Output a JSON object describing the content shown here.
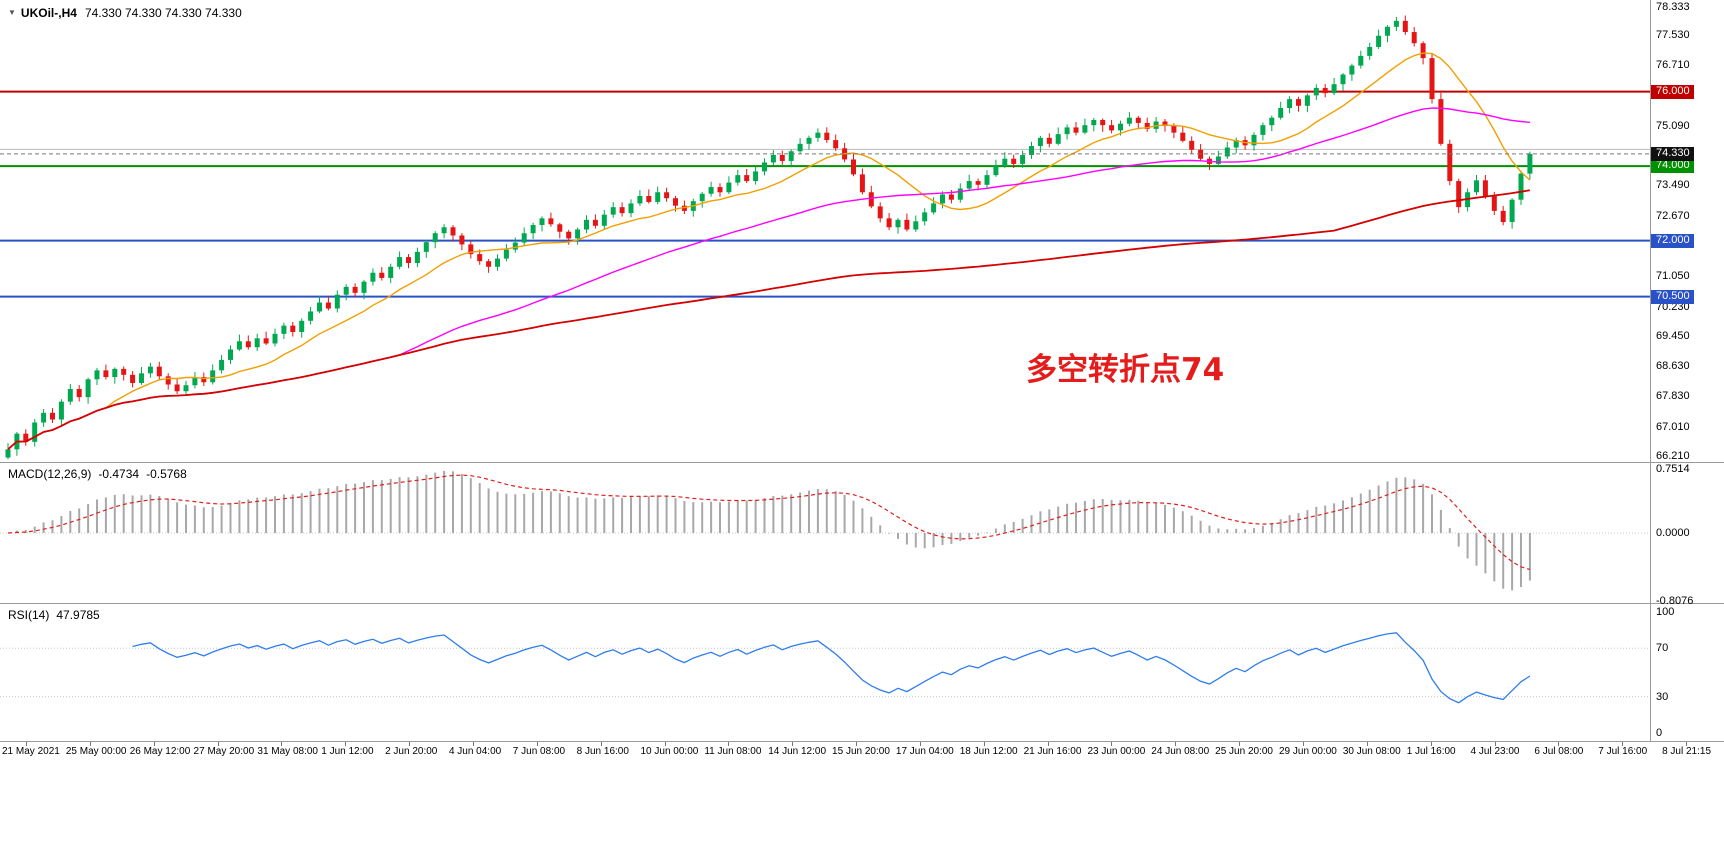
{
  "header": {
    "symbol": "UKOil-,H4",
    "ohlc": "74.330 74.330 74.330 74.330"
  },
  "annotation": {
    "text": "多空转折点74",
    "color": "#e51c1c"
  },
  "chart_data": [
    {
      "name": "price-pane",
      "type": "candlestick",
      "symbol": "UKOil-",
      "timeframe": "H4",
      "title_ohlc": "74.330 74.330 74.330 74.330",
      "ylim": [
        66.06,
        78.46
      ],
      "y_ticks": [
        "78.333",
        "77.530",
        "76.710",
        "75.090",
        "73.490",
        "72.670",
        "71.050",
        "70.230",
        "69.450",
        "68.630",
        "67.830",
        "67.010",
        "66.210"
      ],
      "levels": [
        {
          "value": 76.0,
          "label": "76.000",
          "color": "#c00000"
        },
        {
          "value": 74.0,
          "label": "74.000",
          "color": "#009100"
        },
        {
          "value": 72.0,
          "label": "72.000",
          "color": "#2a52c8"
        },
        {
          "value": 70.5,
          "label": "70.500",
          "color": "#2a52c8"
        }
      ],
      "gray_level": {
        "value": 74.45,
        "color": "#bdbdbd"
      },
      "current_price": {
        "value": 74.33,
        "label": "74.330",
        "tag_bg": "#111111",
        "line_color": "#777777"
      },
      "colors": {
        "up": "#00a84f",
        "down": "#e61515"
      },
      "moving_averages": [
        {
          "name": "ma-fast",
          "period": 12,
          "color": "#f0a000",
          "width": 1.4
        },
        {
          "name": "ma-mid",
          "period": 45,
          "color": "#ff00ff",
          "width": 1.4
        },
        {
          "name": "ma-slow",
          "period": 150,
          "color": "#d40000",
          "width": 1.8
        }
      ],
      "first_open": 66.18,
      "wick_base": 0.04,
      "wick_var": 0.14,
      "closes": [
        66.4,
        66.82,
        66.6,
        67.12,
        67.38,
        67.2,
        67.68,
        68.02,
        67.8,
        68.28,
        68.52,
        68.34,
        68.56,
        68.4,
        68.18,
        68.44,
        68.62,
        68.36,
        68.14,
        67.96,
        68.12,
        68.34,
        68.2,
        68.52,
        68.8,
        69.08,
        69.3,
        69.14,
        69.38,
        69.24,
        69.5,
        69.72,
        69.55,
        69.85,
        70.1,
        70.34,
        70.18,
        70.55,
        70.76,
        70.6,
        70.9,
        71.14,
        71.0,
        71.3,
        71.56,
        71.4,
        71.7,
        71.96,
        72.2,
        72.36,
        72.14,
        71.9,
        71.64,
        71.45,
        71.3,
        71.52,
        71.76,
        71.95,
        72.2,
        72.42,
        72.6,
        72.44,
        72.24,
        72.06,
        72.3,
        72.56,
        72.4,
        72.7,
        72.9,
        72.74,
        73.0,
        73.2,
        73.04,
        73.3,
        73.14,
        72.94,
        72.8,
        73.06,
        73.26,
        73.44,
        73.3,
        73.56,
        73.76,
        73.6,
        73.86,
        74.1,
        74.3,
        74.14,
        74.4,
        74.6,
        74.76,
        74.9,
        74.7,
        74.48,
        74.18,
        73.78,
        73.3,
        72.92,
        72.6,
        72.36,
        72.56,
        72.3,
        72.52,
        72.76,
        73.0,
        73.24,
        73.1,
        73.4,
        73.6,
        73.5,
        73.76,
        74.0,
        74.2,
        74.06,
        74.3,
        74.54,
        74.76,
        74.6,
        74.86,
        75.04,
        74.9,
        75.1,
        75.24,
        75.1,
        74.96,
        75.14,
        75.3,
        75.16,
        75.0,
        75.2,
        75.08,
        74.9,
        74.68,
        74.44,
        74.2,
        74.06,
        74.26,
        74.5,
        74.7,
        74.56,
        74.84,
        75.1,
        75.3,
        75.56,
        75.8,
        75.62,
        75.9,
        76.1,
        75.96,
        76.2,
        76.46,
        76.7,
        76.96,
        77.2,
        77.5,
        77.74,
        77.9,
        77.6,
        77.3,
        76.9,
        75.8,
        74.6,
        73.6,
        72.9,
        73.3,
        73.62,
        73.2,
        72.8,
        72.5,
        73.1,
        73.8,
        74.33
      ],
      "x_labels": [
        "21 May 2021",
        "25 May 00:00",
        "26 May 12:00",
        "27 May 20:00",
        "31 May 08:00",
        "1 Jun 12:00",
        "2 Jun 20:00",
        "4 Jun 04:00",
        "7 Jun 08:00",
        "8 Jun 16:00",
        "10 Jun 00:00",
        "11 Jun 08:00",
        "14 Jun 12:00",
        "15 Jun 20:00",
        "17 Jun 04:00",
        "18 Jun 12:00",
        "21 Jun 16:00",
        "23 Jun 00:00",
        "24 Jun 08:00",
        "25 Jun 20:00",
        "29 Jun 00:00",
        "30 Jun 08:00",
        "1 Jul 16:00",
        "4 Jul 23:00",
        "6 Jul 08:00",
        "7 Jul 16:00",
        "8 Jul 21:15"
      ]
    },
    {
      "name": "macd-pane",
      "type": "histogram-line",
      "label": "MACD(12,26,9)",
      "value_main": "-0.4734",
      "value_signal": "-0.5768",
      "fast": 12,
      "slow": 26,
      "signal": 9,
      "scale": {
        "top": "0.7514",
        "zero": "0.0000",
        "bottom": "-0.8076"
      },
      "colors": {
        "histogram": "#a8a8a8",
        "signal": "#e02020"
      }
    },
    {
      "name": "rsi-pane",
      "type": "line",
      "label": "RSI(14)",
      "value": "47.9785",
      "period": 14,
      "scale_labels": [
        "100",
        "70",
        "30",
        "0"
      ],
      "levels": [
        70,
        30
      ],
      "color": "#2f7ded"
    }
  ]
}
